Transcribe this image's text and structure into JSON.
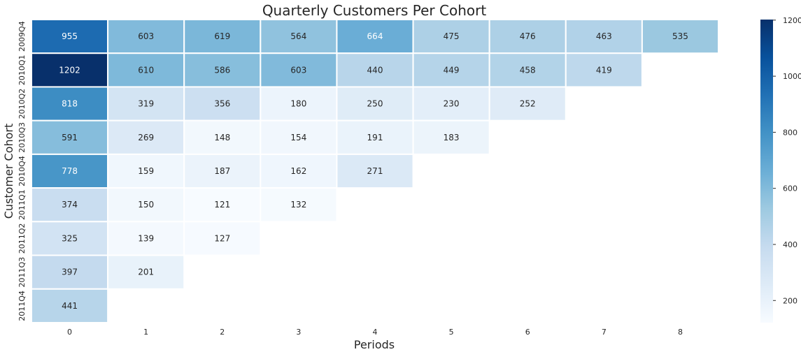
{
  "chart_data": {
    "type": "heatmap",
    "title": "Quarterly Customers Per Cohort",
    "xlabel": "Periods",
    "ylabel": "Customer Cohort",
    "x_categories": [
      "0",
      "1",
      "2",
      "3",
      "4",
      "5",
      "6",
      "7",
      "8"
    ],
    "y_categories": [
      "2009Q4",
      "2010Q1",
      "2010Q2",
      "2010Q3",
      "2010Q4",
      "2011Q1",
      "2011Q2",
      "2011Q3",
      "2011Q4"
    ],
    "values": [
      [
        955,
        603,
        619,
        564,
        664,
        475,
        476,
        463,
        535
      ],
      [
        1202,
        610,
        586,
        603,
        440,
        449,
        458,
        419,
        null
      ],
      [
        818,
        319,
        356,
        180,
        250,
        230,
        252,
        null,
        null
      ],
      [
        591,
        269,
        148,
        154,
        191,
        183,
        null,
        null,
        null
      ],
      [
        778,
        159,
        187,
        162,
        271,
        null,
        null,
        null,
        null
      ],
      [
        374,
        150,
        121,
        132,
        null,
        null,
        null,
        null,
        null
      ],
      [
        325,
        139,
        127,
        null,
        null,
        null,
        null,
        null,
        null
      ],
      [
        397,
        201,
        null,
        null,
        null,
        null,
        null,
        null,
        null
      ],
      [
        441,
        null,
        null,
        null,
        null,
        null,
        null,
        null,
        null
      ]
    ],
    "colormap": "Blues",
    "vmin": 121,
    "vmax": 1202,
    "colorbar_ticks": [
      200,
      400,
      600,
      800,
      1000,
      1200
    ],
    "annotations": true
  }
}
